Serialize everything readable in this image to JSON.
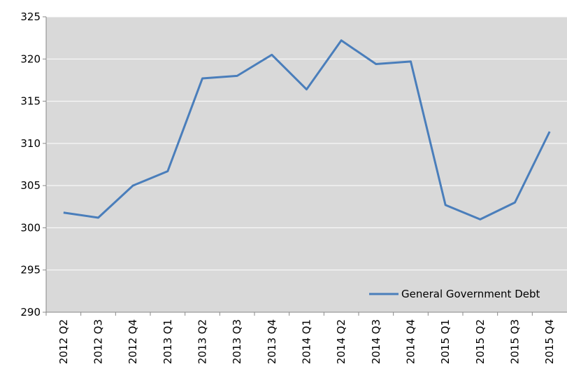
{
  "chart_data": {
    "type": "line",
    "categories": [
      "2012 Q2",
      "2012 Q3",
      "2012 Q4",
      "2013 Q1",
      "2013 Q2",
      "2013 Q3",
      "2013 Q4",
      "2014 Q1",
      "2014 Q2",
      "2014 Q3",
      "2014 Q4",
      "2015 Q1",
      "2015 Q2",
      "2015 Q3",
      "2015 Q4"
    ],
    "series": [
      {
        "name": "General Government Debt",
        "color": "#4a7ebb",
        "values": [
          301.8,
          301.2,
          305.0,
          306.7,
          317.7,
          318.0,
          320.5,
          316.4,
          322.2,
          319.4,
          319.7,
          302.7,
          301.0,
          303.0,
          311.4
        ]
      }
    ],
    "ylim": [
      290,
      325
    ],
    "yticks": [
      290,
      295,
      300,
      305,
      310,
      315,
      320,
      325
    ],
    "grid": true,
    "legend": "bottom-right"
  }
}
